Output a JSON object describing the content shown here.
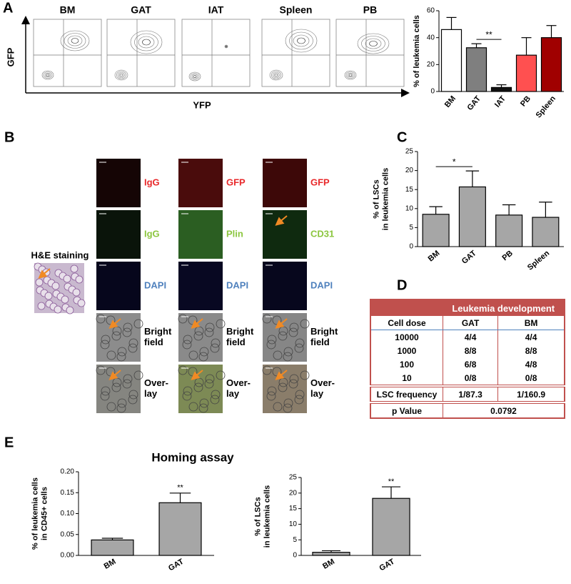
{
  "panel_labels": [
    "A",
    "B",
    "C",
    "D",
    "E"
  ],
  "flow": {
    "plots": [
      "BM",
      "GAT",
      "IAT",
      "Spleen",
      "PB"
    ],
    "y_axis": "GFP",
    "x_axis": "YFP"
  },
  "microscopy": {
    "he_label": "H&E staining",
    "rows": [
      [
        [
          "IgG"
        ],
        [
          "GFP"
        ],
        [
          "GFP"
        ]
      ],
      [
        [
          "IgG"
        ],
        [
          "Plin"
        ],
        [
          "CD31"
        ]
      ],
      [
        [
          "DAPI"
        ],
        [
          "DAPI"
        ],
        [
          "DAPI"
        ]
      ],
      [
        [
          "Bright",
          "field"
        ],
        [
          "Bright",
          "field"
        ],
        [
          "Bright",
          "field"
        ]
      ],
      [
        [
          "Over-",
          "lay"
        ],
        [
          "Over-",
          "lay"
        ],
        [
          "Over-",
          "lay"
        ]
      ]
    ]
  },
  "table": {
    "header": "Leukemia development",
    "columns": [
      "Cell dose",
      "GAT",
      "BM"
    ],
    "rows": [
      [
        "10000",
        "4/4",
        "4/4"
      ],
      [
        "1000",
        "8/8",
        "8/8"
      ],
      [
        "100",
        "6/8",
        "4/8"
      ],
      [
        "10",
        "0/8",
        "0/8"
      ]
    ],
    "frequency": [
      "LSC frequency",
      "1/87.3",
      "1/160.9"
    ],
    "p_value": [
      "p Value",
      "0.0792"
    ]
  },
  "homing_title": "Homing assay",
  "chart_data": [
    {
      "type": "bar",
      "ylabel": [
        "% of leukemia cells"
      ],
      "categories": [
        "BM",
        "GAT",
        "IAT",
        "PB",
        "Spleen"
      ],
      "values": [
        46,
        32.5,
        3,
        27,
        40
      ],
      "errors": [
        9,
        3,
        2,
        13,
        9
      ],
      "colors": [
        "#ffffff",
        "#7f7f7f",
        "#111111",
        "#ff5050",
        "#a00000"
      ],
      "ylim": [
        0,
        60
      ],
      "yticks": [
        0,
        20,
        40,
        60
      ],
      "significance": [
        {
          "label": "**",
          "between": [
            "GAT",
            "IAT"
          ]
        }
      ]
    },
    {
      "type": "bar",
      "ylabel": [
        "% of LSCs",
        "in leukemia cells"
      ],
      "categories": [
        "BM",
        "GAT",
        "PB",
        "Spleen"
      ],
      "values": [
        8.5,
        15.7,
        8.3,
        7.7
      ],
      "errors": [
        2,
        4.2,
        2.7,
        4
      ],
      "color": "#a6a6a6",
      "ylim": [
        0,
        25
      ],
      "yticks": [
        0,
        5,
        10,
        15,
        20,
        25
      ],
      "significance": [
        {
          "label": "*",
          "between": [
            "BM",
            "GAT"
          ]
        }
      ]
    },
    {
      "type": "bar",
      "ylabel": [
        "% of leukemia cells",
        "in CD45+ cells"
      ],
      "categories": [
        "BM",
        "GAT"
      ],
      "values": [
        0.037,
        0.126
      ],
      "errors": [
        0.004,
        0.023
      ],
      "color": "#a6a6a6",
      "ylim": [
        0,
        0.2
      ],
      "yticks": [
        {
          "value": 0,
          "label": "0.00"
        },
        {
          "value": 0.05,
          "label": "0.05"
        },
        {
          "value": 0.1,
          "label": "0.10"
        },
        {
          "value": 0.15,
          "label": "0.15"
        },
        {
          "value": 0.2,
          "label": "0.20"
        }
      ],
      "significance": [
        {
          "label": "**",
          "between": [
            "GAT"
          ]
        }
      ]
    },
    {
      "type": "bar",
      "ylabel": [
        "% of LSCs",
        "in leukemia cells"
      ],
      "categories": [
        "BM",
        "GAT"
      ],
      "values": [
        1.0,
        18.3
      ],
      "errors": [
        0.5,
        3.7
      ],
      "color": "#a6a6a6",
      "ylim": [
        0,
        25
      ],
      "yticks": [
        0,
        5,
        10,
        15,
        20,
        25
      ],
      "significance": [
        {
          "label": "**",
          "between": [
            "GAT"
          ]
        }
      ]
    }
  ]
}
